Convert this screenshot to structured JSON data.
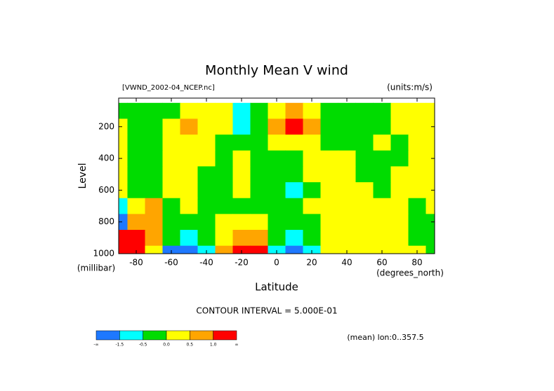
{
  "chart_data": {
    "type": "contour",
    "title": "Monthly Mean V wind",
    "subtitle_left": "[VWND_2002-04_NCEP.nc]",
    "subtitle_right": "(units:m/s)",
    "x_label": "Latitude",
    "x_units": "(degrees_north)",
    "y_label": "Level",
    "y_units": "(millibar)",
    "annotation": "CONTOUR INTERVAL = 5.000E-01",
    "footnote": "(mean) lon:0..357.5",
    "xlim": [
      -90,
      90
    ],
    "xticks": [
      -80,
      -60,
      -40,
      -20,
      0,
      20,
      40,
      60,
      80
    ],
    "ylim": [
      1000,
      20
    ],
    "yticks": [
      200,
      400,
      600,
      800,
      1000
    ],
    "x": [
      -90,
      -80,
      -70,
      -60,
      -50,
      -40,
      -30,
      -20,
      -10,
      0,
      10,
      20,
      30,
      40,
      50,
      60,
      70,
      80,
      90
    ],
    "y": [
      100,
      200,
      300,
      400,
      500,
      600,
      700,
      800,
      900,
      1000
    ],
    "z": [
      [
        -0.2,
        -0.2,
        -0.2,
        -0.2,
        0.2,
        0.2,
        0.2,
        -0.6,
        -0.2,
        0.2,
        0.8,
        0.2,
        -0.2,
        -0.2,
        -0.2,
        -0.2,
        0.2,
        0.2,
        0.2
      ],
      [
        0.2,
        -0.2,
        -0.2,
        0.2,
        0.7,
        0.2,
        0.2,
        -0.7,
        -0.2,
        0.7,
        1.2,
        0.6,
        -0.2,
        -0.2,
        -0.2,
        -0.2,
        0.2,
        0.2,
        0.2
      ],
      [
        0.2,
        -0.2,
        -0.2,
        0.2,
        0.2,
        0.2,
        -0.2,
        -0.2,
        -0.2,
        0.2,
        0.2,
        0.2,
        -0.2,
        -0.2,
        -0.2,
        0.2,
        -0.2,
        0.2,
        0.2
      ],
      [
        0.2,
        -0.2,
        -0.2,
        0.2,
        0.2,
        0.2,
        -0.2,
        0.2,
        -0.2,
        -0.2,
        -0.2,
        0.2,
        0.2,
        0.2,
        -0.2,
        -0.2,
        -0.2,
        0.2,
        0.2
      ],
      [
        0.2,
        -0.2,
        -0.2,
        0.2,
        0.2,
        -0.2,
        -0.2,
        0.2,
        -0.2,
        -0.2,
        -0.2,
        0.2,
        0.2,
        0.2,
        -0.2,
        -0.2,
        0.2,
        0.2,
        0.2
      ],
      [
        0.2,
        -0.2,
        -0.2,
        0.2,
        0.2,
        -0.2,
        -0.2,
        0.2,
        -0.2,
        -0.2,
        -0.6,
        -0.2,
        0.2,
        0.2,
        0.2,
        -0.2,
        0.2,
        0.2,
        0.2
      ],
      [
        -0.6,
        0.2,
        0.7,
        -0.2,
        0.2,
        -0.2,
        -0.2,
        -0.2,
        -0.2,
        -0.2,
        -0.2,
        0.2,
        0.2,
        0.2,
        0.2,
        0.2,
        0.2,
        -0.2,
        0.2
      ],
      [
        -1.7,
        0.7,
        0.7,
        -0.2,
        -0.2,
        -0.2,
        0.2,
        0.2,
        0.2,
        -0.2,
        -0.2,
        -0.2,
        0.2,
        0.2,
        0.2,
        0.2,
        0.2,
        -0.2,
        -0.2
      ],
      [
        1.2,
        1.2,
        0.7,
        -0.2,
        -0.6,
        -0.2,
        0.2,
        0.7,
        0.7,
        -0.2,
        -0.6,
        -0.2,
        0.2,
        0.2,
        0.2,
        0.2,
        0.2,
        -0.2,
        -0.2
      ],
      [
        1.2,
        1.2,
        0.2,
        -1.7,
        -1.7,
        -0.6,
        0.7,
        1.2,
        1.2,
        -0.6,
        -1.7,
        -0.6,
        0.2,
        0.2,
        0.2,
        0.2,
        0.2,
        0.2,
        -0.2
      ]
    ],
    "colorbar": {
      "colors": [
        "#1e78ff",
        "#00ffff",
        "#00dc00",
        "#ffff00",
        "#ffa500",
        "#ff0000"
      ],
      "ticks": [
        "-∞",
        {
          "value": -1.5,
          "label": "-1.5"
        },
        {
          "value": -0.5,
          "label": "-0.5"
        },
        {
          "value": 0,
          "label": "0.0"
        },
        {
          "value": 0.5,
          "label": "0.5"
        },
        {
          "value": 1,
          "label": "1.0"
        },
        "∞"
      ]
    }
  }
}
